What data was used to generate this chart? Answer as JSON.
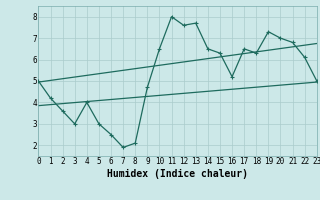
{
  "title": "",
  "xlabel": "Humidex (Indice chaleur)",
  "ylabel": "",
  "background_color": "#cce8e8",
  "line_color": "#1e6b5e",
  "xlim": [
    0,
    23
  ],
  "ylim": [
    1.5,
    8.5
  ],
  "xticks": [
    0,
    1,
    2,
    3,
    4,
    5,
    6,
    7,
    8,
    9,
    10,
    11,
    12,
    13,
    14,
    15,
    16,
    17,
    18,
    19,
    20,
    21,
    22,
    23
  ],
  "yticks": [
    2,
    3,
    4,
    5,
    6,
    7,
    8
  ],
  "main_line_x": [
    0,
    1,
    2,
    3,
    4,
    5,
    6,
    7,
    8,
    9,
    10,
    11,
    12,
    13,
    14,
    15,
    16,
    17,
    18,
    19,
    20,
    21,
    22,
    23
  ],
  "main_line_y": [
    5.0,
    4.2,
    3.6,
    3.0,
    4.0,
    3.0,
    2.5,
    1.9,
    2.1,
    4.7,
    6.5,
    8.0,
    7.6,
    7.7,
    6.5,
    6.3,
    5.2,
    6.5,
    6.3,
    7.3,
    7.0,
    6.8,
    6.1,
    5.0
  ],
  "trend_line1_x": [
    0,
    23
  ],
  "trend_line1_y": [
    4.95,
    6.75
  ],
  "trend_line2_x": [
    0,
    23
  ],
  "trend_line2_y": [
    3.85,
    4.95
  ],
  "grid_color": "#aacccc",
  "tick_fontsize": 5.5,
  "label_fontsize": 7.0
}
